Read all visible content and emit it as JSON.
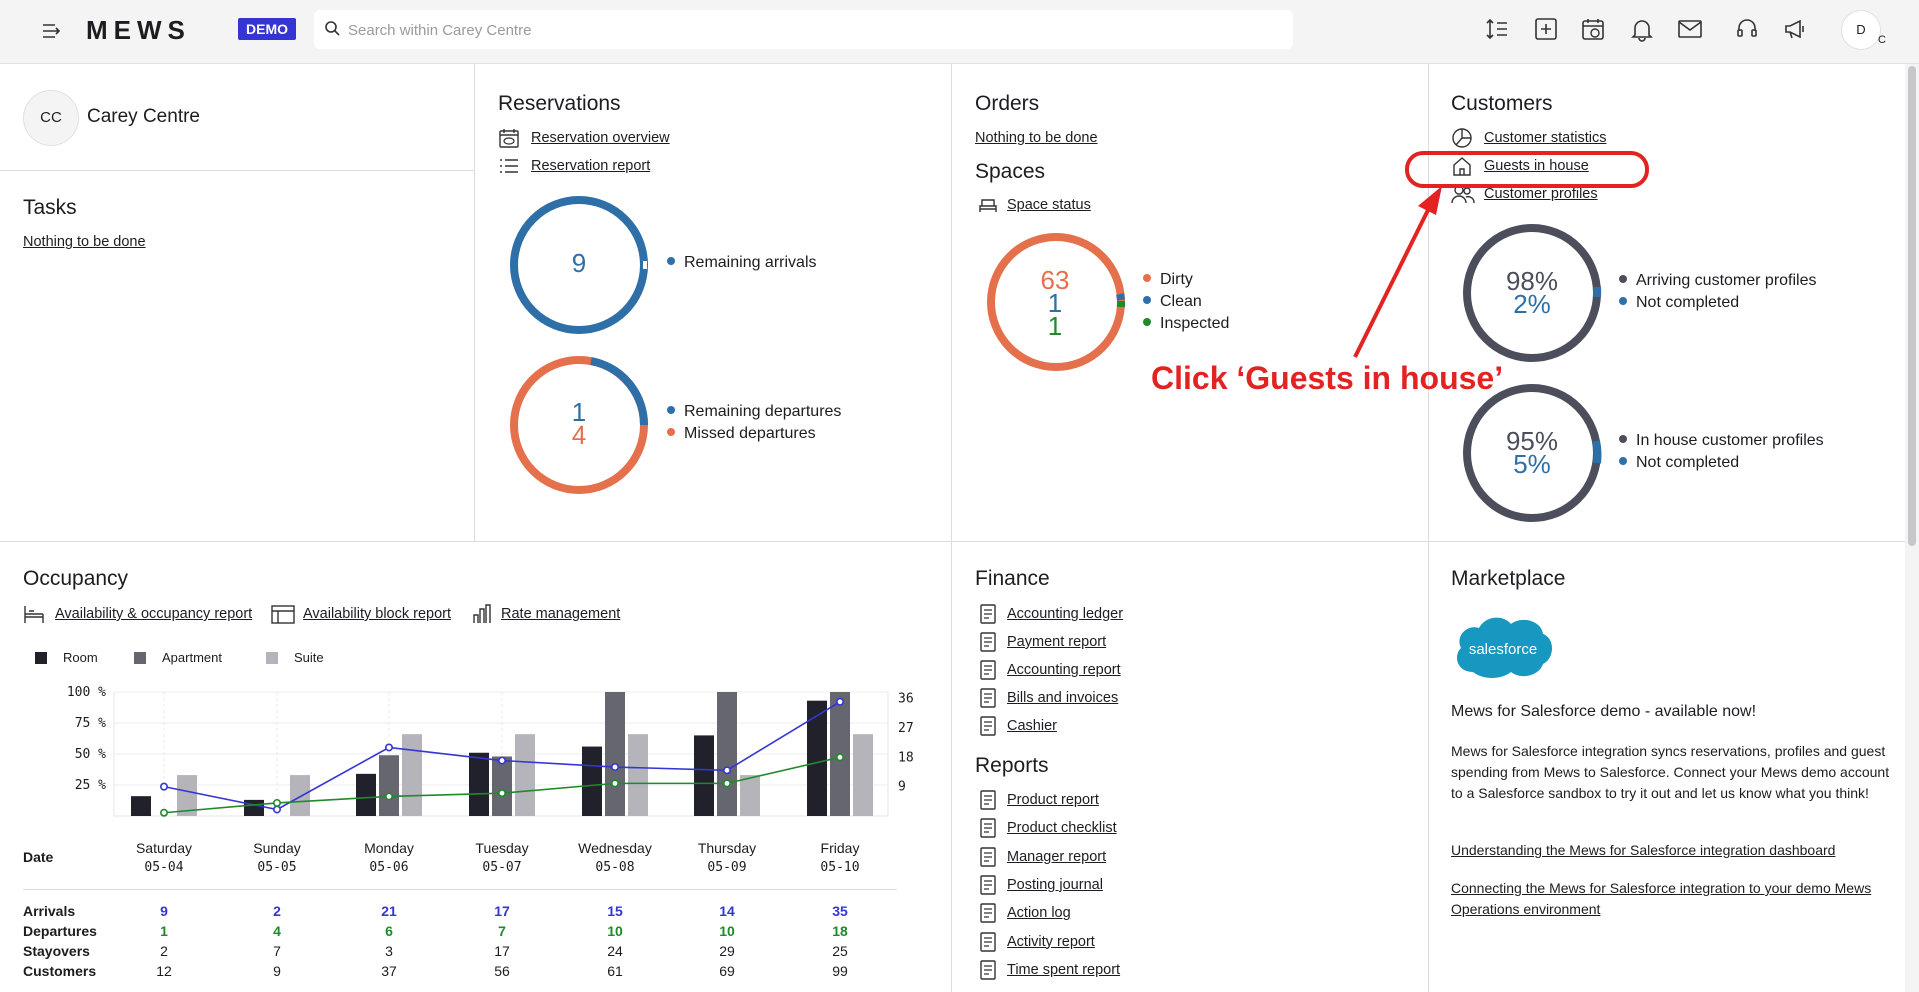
{
  "topbar": {
    "logo": "MEWS",
    "demo_badge": "DEMO",
    "search_placeholder": "Search within Carey Centre",
    "user_initial": "D",
    "user_sub": "C"
  },
  "property": {
    "initials": "CC",
    "name": "Carey Centre"
  },
  "tasks": {
    "title": "Tasks",
    "empty": "Nothing to be done"
  },
  "reservations": {
    "title": "Reservations",
    "links": [
      "Reservation overview",
      "Reservation report"
    ],
    "arrivals": {
      "value": "9",
      "legend": "Remaining arrivals"
    },
    "departures": {
      "remaining": "1",
      "missed": "4",
      "legend_remaining": "Remaining departures",
      "legend_missed": "Missed departures"
    }
  },
  "orders": {
    "title": "Orders",
    "empty": "Nothing to be done"
  },
  "spaces": {
    "title": "Spaces",
    "link": "Space status",
    "dirty": "63",
    "clean": "1",
    "inspected": "1",
    "legend_dirty": "Dirty",
    "legend_clean": "Clean",
    "legend_inspected": "Inspected"
  },
  "customers": {
    "title": "Customers",
    "links": [
      "Customer statistics",
      "Guests in house",
      "Customer profiles"
    ],
    "arriving": {
      "completed": "98%",
      "not_completed": "2%",
      "legend_a": "Arriving customer profiles",
      "legend_b": "Not completed"
    },
    "in_house": {
      "completed": "95%",
      "not_completed": "5%",
      "legend_a": "In house customer profiles",
      "legend_b": "Not completed"
    }
  },
  "annotation": {
    "text": "Click ‘Guests in house’"
  },
  "occupancy": {
    "title": "Occupancy",
    "links": [
      "Availability & occupancy report",
      "Availability block report",
      "Rate management"
    ],
    "legend": [
      "Room",
      "Apartment",
      "Suite"
    ],
    "date_label": "Date",
    "days": [
      {
        "name": "Saturday",
        "date": "05-04"
      },
      {
        "name": "Sunday",
        "date": "05-05"
      },
      {
        "name": "Monday",
        "date": "05-06"
      },
      {
        "name": "Tuesday",
        "date": "05-07"
      },
      {
        "name": "Wednesday",
        "date": "05-08"
      },
      {
        "name": "Thursday",
        "date": "05-09"
      },
      {
        "name": "Friday",
        "date": "05-10"
      }
    ],
    "rows": [
      {
        "label": "Arrivals",
        "values": [
          "9",
          "2",
          "21",
          "17",
          "15",
          "14",
          "35"
        ],
        "color": "#3535d4"
      },
      {
        "label": "Departures",
        "values": [
          "1",
          "4",
          "6",
          "7",
          "10",
          "10",
          "18"
        ],
        "color": "#1f8a2a"
      },
      {
        "label": "Stayovers",
        "values": [
          "2",
          "7",
          "3",
          "17",
          "24",
          "29",
          "25"
        ],
        "color": "#1c1d21"
      },
      {
        "label": "Customers",
        "values": [
          "12",
          "9",
          "37",
          "56",
          "61",
          "69",
          "99"
        ],
        "color": "#1c1d21"
      }
    ]
  },
  "chart_data": {
    "type": "bar",
    "categories": [
      "05-04",
      "05-05",
      "05-06",
      "05-07",
      "05-08",
      "05-09",
      "05-10"
    ],
    "series": [
      {
        "name": "Room",
        "values": [
          16,
          13,
          34,
          51,
          56,
          65,
          93
        ]
      },
      {
        "name": "Apartment",
        "values": [
          0,
          0,
          49,
          48,
          100,
          100,
          100
        ]
      },
      {
        "name": "Suite",
        "values": [
          33,
          33,
          66,
          66,
          66,
          33,
          66
        ]
      }
    ],
    "lines": [
      {
        "name": "Arrivals",
        "values": [
          9,
          2,
          21,
          17,
          15,
          14,
          35
        ]
      },
      {
        "name": "Departures",
        "values": [
          1,
          4,
          6,
          7,
          10,
          10,
          18
        ]
      }
    ],
    "ylim": [
      0,
      100
    ],
    "y2lim": [
      0,
      38
    ],
    "yticks": [
      "100 %",
      "75 %",
      "50 %",
      "25 %"
    ],
    "y2ticks": [
      "36",
      "27",
      "18",
      "9"
    ]
  },
  "finance": {
    "title": "Finance",
    "links": [
      "Accounting ledger",
      "Payment report",
      "Accounting report",
      "Bills and invoices",
      "Cashier"
    ]
  },
  "reports": {
    "title": "Reports",
    "links": [
      "Product report",
      "Product checklist",
      "Manager report",
      "Posting journal",
      "Action log",
      "Activity report",
      "Time spent report"
    ]
  },
  "marketplace": {
    "title": "Marketplace",
    "logo_text": "salesforce",
    "headline": "Mews for Salesforce demo - available now!",
    "body": "Mews for Salesforce integration syncs reservations, profiles and guest spending from Mews to Salesforce. Connect your Mews demo account to a Salesforce sandbox to try it out and let us know what you think!",
    "links": [
      "Understanding the Mews for Salesforce integration dashboard",
      "Connecting the Mews for Salesforce integration to your demo Mews Operations environment"
    ]
  }
}
